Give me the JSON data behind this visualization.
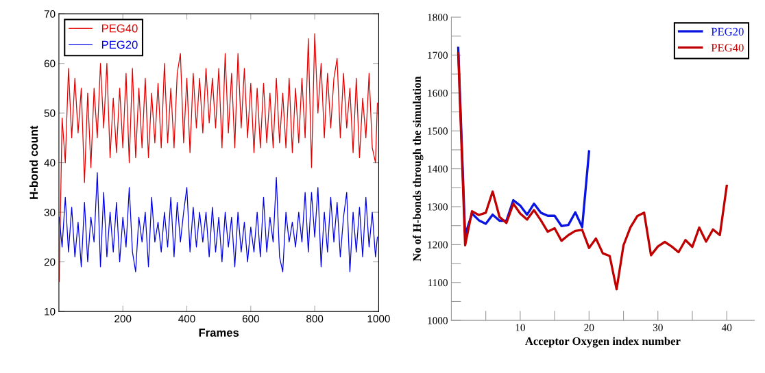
{
  "chart_data": [
    {
      "type": "line",
      "xlabel": "Frames",
      "ylabel": "H-bond count",
      "xlim": [
        0,
        1000
      ],
      "xticks": [
        200,
        400,
        600,
        800,
        1000
      ],
      "ylim": [
        10,
        70
      ],
      "yticks": [
        10,
        20,
        30,
        40,
        50,
        60,
        70
      ],
      "grid": false,
      "legend": "top left",
      "marker": "none",
      "line_style": "solid",
      "x": [
        1,
        10,
        20,
        30,
        40,
        50,
        60,
        70,
        80,
        90,
        100,
        110,
        120,
        130,
        140,
        150,
        160,
        170,
        180,
        190,
        200,
        210,
        220,
        230,
        240,
        250,
        260,
        270,
        280,
        290,
        300,
        310,
        320,
        330,
        340,
        350,
        360,
        370,
        380,
        390,
        400,
        410,
        420,
        430,
        440,
        450,
        460,
        470,
        480,
        490,
        500,
        510,
        520,
        530,
        540,
        550,
        560,
        570,
        580,
        590,
        600,
        610,
        620,
        630,
        640,
        650,
        660,
        670,
        680,
        690,
        700,
        710,
        720,
        730,
        740,
        750,
        760,
        770,
        780,
        790,
        800,
        810,
        820,
        830,
        840,
        850,
        860,
        870,
        880,
        890,
        900,
        910,
        920,
        930,
        940,
        950,
        960,
        970,
        980,
        990,
        996
      ],
      "series": [
        {
          "name": "PEG40",
          "color": "#e00000",
          "values": [
            16,
            49,
            40,
            59,
            45,
            57,
            46,
            55,
            36,
            54,
            39,
            55,
            45,
            60,
            47,
            60,
            41,
            53,
            42,
            55,
            43,
            58,
            40,
            59,
            41,
            55,
            43,
            57,
            41,
            54,
            44,
            56,
            43,
            60,
            44,
            55,
            43,
            58,
            62,
            44,
            57,
            42,
            58,
            47,
            57,
            46,
            59,
            48,
            57,
            47,
            59,
            43,
            62,
            46,
            58,
            43,
            62,
            47,
            59,
            45,
            56,
            42,
            55,
            43,
            56,
            44,
            54,
            43,
            57,
            44,
            54,
            43,
            57,
            42,
            55,
            44,
            57,
            45,
            65,
            39,
            66,
            50,
            60,
            45,
            58,
            47,
            57,
            61,
            45,
            58,
            47,
            55,
            42,
            57,
            41,
            53,
            45,
            58,
            43,
            40,
            52
          ]
        },
        {
          "name": "PEG20",
          "color": "#0000e0",
          "values": [
            29,
            23,
            33,
            22,
            31,
            21,
            28,
            19,
            32,
            20,
            29,
            24,
            38,
            19,
            34,
            21,
            30,
            22,
            32,
            20,
            29,
            23,
            35,
            22,
            18,
            29,
            24,
            30,
            19,
            33,
            24,
            28,
            22,
            30,
            23,
            33,
            21,
            32,
            24,
            30,
            35,
            22,
            31,
            23,
            30,
            24,
            30,
            21,
            31,
            22,
            29,
            20,
            30,
            23,
            29,
            19,
            30,
            22,
            28,
            20,
            27,
            22,
            30,
            21,
            33,
            22,
            29,
            24,
            37,
            21,
            18,
            30,
            24,
            28,
            23,
            30,
            24,
            34,
            22,
            34,
            25,
            35,
            19,
            30,
            22,
            33,
            24,
            32,
            21,
            29,
            34,
            18,
            30,
            22,
            31,
            21,
            33,
            23,
            30,
            21,
            25
          ]
        }
      ]
    },
    {
      "type": "line",
      "xlabel": "Acceptor Oxygen index number",
      "ylabel": "No of H-bonds through the simulation",
      "xlim": [
        0,
        44
      ],
      "xticks": [
        {
          "value": 5,
          "label": null
        },
        10,
        {
          "value": 15,
          "label": null
        },
        20,
        {
          "value": 25,
          "label": null
        },
        30,
        {
          "value": 35,
          "label": null
        },
        40
      ],
      "ylim": [
        1000,
        1800
      ],
      "yticks": [
        1000,
        {
          "value": 1050,
          "label": null
        },
        1100,
        {
          "value": 1150,
          "label": null
        },
        1200,
        {
          "value": 1250,
          "label": null
        },
        1300,
        {
          "value": 1350,
          "label": null
        },
        1400,
        {
          "value": 1450,
          "label": null
        },
        1500,
        {
          "value": 1550,
          "label": null
        },
        1600,
        {
          "value": 1650,
          "label": null
        },
        1700,
        {
          "value": 1750,
          "label": null
        },
        1800
      ],
      "grid": false,
      "legend": "top right",
      "marker": "none",
      "line_style": "solid",
      "series": [
        {
          "name": "PEG20",
          "color": "#0a14e0",
          "x": [
            1,
            2,
            3,
            4,
            5,
            6,
            7,
            8,
            9,
            10,
            11,
            12,
            13,
            14,
            15,
            16,
            17,
            18,
            19,
            20
          ],
          "values": [
            1719,
            1225,
            1282,
            1264,
            1255,
            1279,
            1263,
            1263,
            1317,
            1303,
            1279,
            1308,
            1284,
            1276,
            1276,
            1249,
            1252,
            1285,
            1246,
            1446
          ]
        },
        {
          "name": "PEG40",
          "color": "#c00000",
          "x": [
            1,
            2,
            3,
            4,
            5,
            6,
            7,
            8,
            9,
            10,
            11,
            12,
            13,
            14,
            15,
            16,
            17,
            18,
            19,
            20,
            21,
            22,
            23,
            24,
            25,
            26,
            27,
            28,
            29,
            30,
            31,
            32,
            33,
            34,
            35,
            36,
            37,
            38,
            39,
            40
          ],
          "values": [
            1705,
            1198,
            1288,
            1278,
            1284,
            1340,
            1273,
            1257,
            1308,
            1282,
            1266,
            1291,
            1264,
            1234,
            1243,
            1210,
            1225,
            1236,
            1239,
            1191,
            1216,
            1177,
            1170,
            1082,
            1198,
            1245,
            1275,
            1284,
            1172,
            1195,
            1207,
            1195,
            1180,
            1212,
            1194,
            1245,
            1208,
            1240,
            1225,
            1355
          ]
        }
      ]
    }
  ]
}
